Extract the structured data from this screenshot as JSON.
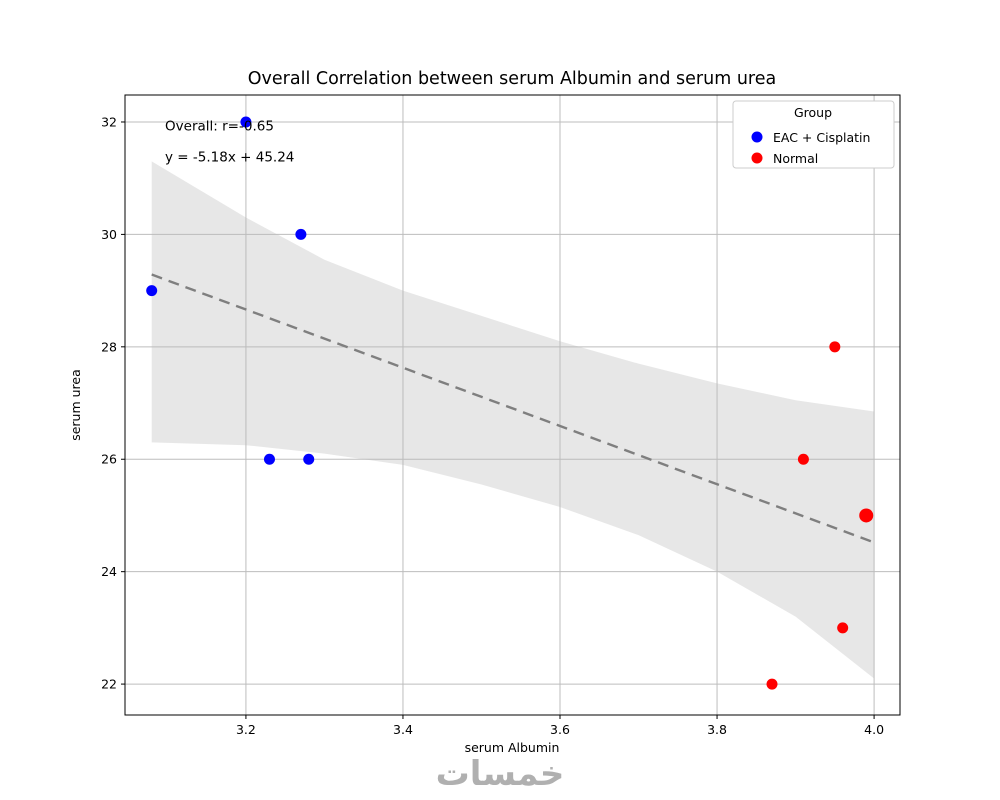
{
  "chart_data": {
    "type": "scatter",
    "title": "Overall Correlation between serum Albumin and serum urea",
    "xlabel": "serum Albumin",
    "ylabel": "serum urea",
    "xlim": [
      3.046,
      4.033
    ],
    "ylim": [
      21.45,
      32.48
    ],
    "xtick_labels": [
      "3.2",
      "3.4",
      "3.6",
      "3.8",
      "4.0"
    ],
    "xtick_values": [
      3.2,
      3.4,
      3.6,
      3.8,
      4.0
    ],
    "ytick_labels": [
      "22",
      "24",
      "26",
      "28",
      "30",
      "32"
    ],
    "ytick_values": [
      22,
      24,
      26,
      28,
      30,
      32
    ],
    "grid": true,
    "grid_color": "#bdbdbd",
    "annotations": [
      {
        "text": "Overall: r=-0.65",
        "x": 3.097,
        "y": 31.85
      },
      {
        "text": "y = -5.18x + 45.24",
        "x": 3.097,
        "y": 31.3
      }
    ],
    "legend": {
      "title": "Group",
      "position": "upper right",
      "entries": [
        {
          "label": "EAC + Cisplatin",
          "color": "#0000ff"
        },
        {
          "label": "Normal",
          "color": "#ff0000"
        }
      ]
    },
    "series": [
      {
        "name": "EAC + Cisplatin",
        "color": "#0000ff",
        "points": [
          [
            3.2,
            32
          ],
          [
            3.27,
            30
          ],
          [
            3.08,
            29
          ],
          [
            3.23,
            26
          ],
          [
            3.28,
            26
          ]
        ]
      },
      {
        "name": "Normal",
        "color": "#ff0000",
        "points": [
          [
            3.95,
            28
          ],
          [
            3.91,
            26
          ],
          [
            3.99,
            25,
            7
          ],
          [
            3.96,
            23
          ],
          [
            3.87,
            22
          ]
        ]
      }
    ],
    "regression": {
      "equation": "y = -5.18x + 45.24",
      "r": -0.65,
      "slope": -5.18,
      "intercept": 45.24,
      "x_range": [
        3.08,
        4.0
      ],
      "color": "#7f7f7f",
      "style": "dashed"
    },
    "confidence_band": {
      "color": "#bbbbbb",
      "opacity": 0.35,
      "upper": [
        [
          3.08,
          31.3
        ],
        [
          3.2,
          30.3
        ],
        [
          3.3,
          29.55
        ],
        [
          3.4,
          29.0
        ],
        [
          3.5,
          28.55
        ],
        [
          3.6,
          28.1
        ],
        [
          3.7,
          27.7
        ],
        [
          3.8,
          27.35
        ],
        [
          3.9,
          27.05
        ],
        [
          4.0,
          26.85
        ]
      ],
      "lower": [
        [
          3.08,
          26.3
        ],
        [
          3.2,
          26.25
        ],
        [
          3.3,
          26.1
        ],
        [
          3.4,
          25.9
        ],
        [
          3.5,
          25.55
        ],
        [
          3.6,
          25.15
        ],
        [
          3.7,
          24.65
        ],
        [
          3.8,
          24.0
        ],
        [
          3.9,
          23.2
        ],
        [
          4.0,
          22.1
        ]
      ]
    }
  },
  "watermark": {
    "text": "خمسات"
  }
}
